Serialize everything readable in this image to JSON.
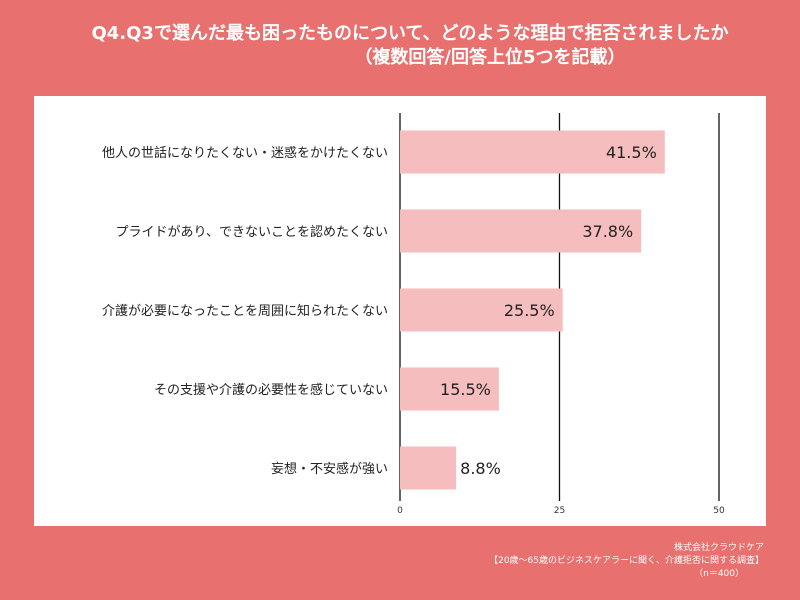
{
  "title": {
    "line1": "Q4.Q3で選んだ最も困ったものについて、どのような理由で拒否されましたか",
    "line2": "（複数回答/回答上位5つを記載）"
  },
  "footer": {
    "company": "株式会社クラウドケア",
    "survey": "【20歳〜65歳のビジネスケアラーに聞く、介護拒否に関する調査】",
    "sample": "（n＝400）"
  },
  "chart_data": {
    "type": "bar",
    "orientation": "horizontal",
    "categories": [
      "他人の世話になりたくない・迷惑をかけたくない",
      "プライドがあり、できないことを認めたくない",
      "介護が必要になったことを周囲に知られたくない",
      "その支援や介護の必要性を感じていない",
      "妄想・不安感が強い"
    ],
    "values": [
      41.5,
      37.8,
      25.5,
      15.5,
      8.8
    ],
    "value_labels": [
      "41.5%",
      "37.8%",
      "25.5%",
      "15.5%",
      "8.8%"
    ],
    "xlim": [
      0,
      50
    ],
    "xticks": [
      "0",
      "25",
      "50"
    ],
    "grid": true,
    "bar_color": "#F5BDBE"
  }
}
